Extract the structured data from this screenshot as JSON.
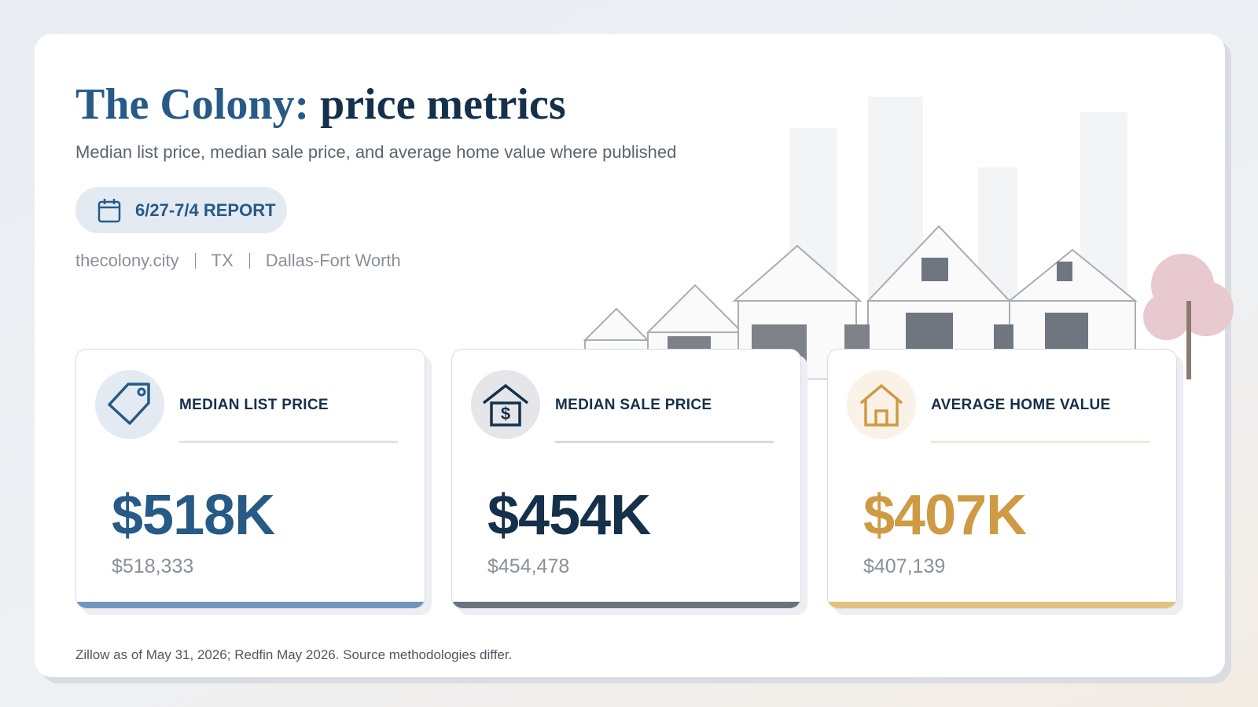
{
  "header": {
    "title_place": "The Colony:",
    "title_rest": "price metrics",
    "subtitle": "Median list price, median sale price, and average home value where published",
    "badge": "6/27-7/4 REPORT",
    "meta": [
      "thecolony.city",
      "TX",
      "Dallas-Fort Worth"
    ]
  },
  "cards": [
    {
      "label": "MEDIAN LIST PRICE",
      "value": "$518K",
      "exact": "$518,333"
    },
    {
      "label": "MEDIAN SALE PRICE",
      "value": "$454K",
      "exact": "$454,478"
    },
    {
      "label": "AVERAGE HOME VALUE",
      "value": "$407K",
      "exact": "$407,139"
    }
  ],
  "footer": "Zillow as of May 31, 2026; Redfin May 2026. Source methodologies differ."
}
